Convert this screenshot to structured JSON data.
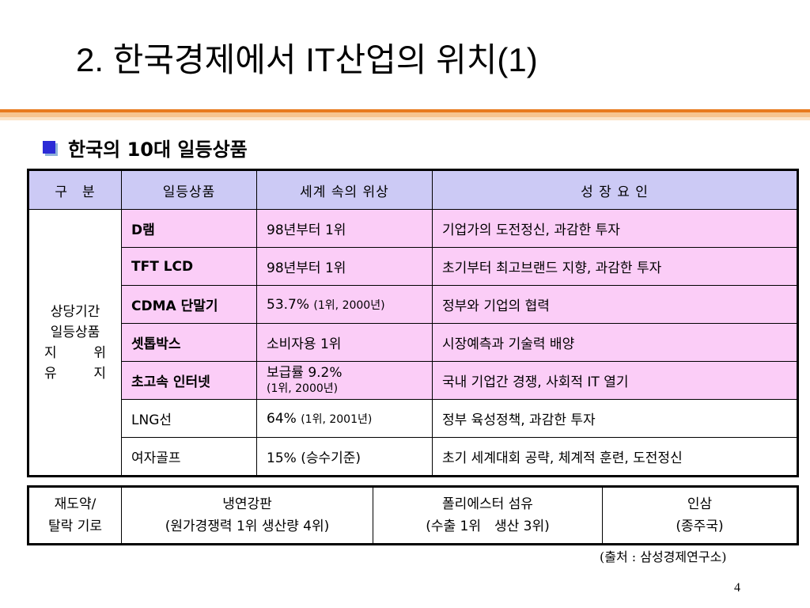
{
  "title": "2. 한국경제에서 IT산업의 위치(1)",
  "subtitle": "한국의 10대 일등상품",
  "table": {
    "headers": [
      "구　분",
      "일등상품",
      "세계 속의 위상",
      "성 장 요 인"
    ],
    "category_label": {
      "line1": "상당기간",
      "line2": "일등상품",
      "line3a": "지",
      "line3b": "위",
      "line4a": "유",
      "line4b": "지"
    },
    "rows": [
      {
        "product": "D램",
        "status": "98년부터 1위",
        "factor": "기업가의 도전정신, 과감한 투자"
      },
      {
        "product": "TFT LCD",
        "status": "98년부터 1위",
        "factor": "초기부터 최고브랜드 지향, 과감한 투자"
      },
      {
        "product": "CDMA 단말기",
        "status_main": "53.7% ",
        "status_note": "(1위, 2000년)",
        "factor": "정부와 기업의 협력"
      },
      {
        "product": "셋톱박스",
        "status": "소비자용 1위",
        "factor": "시장예측과 기술력 배양"
      },
      {
        "product": "초고속 인터넷",
        "status_main": "보급률 9.2%",
        "status_note": "(1위, 2000년)",
        "factor": "국내 기업간 경쟁, 사회적 IT 열기"
      },
      {
        "product": "LNG선",
        "status_main": "64% ",
        "status_note": "(1위, 2001년)",
        "factor": "정부 육성정책, 과감한 투자"
      },
      {
        "product": "여자골프",
        "status": "15% (승수기준)",
        "factor": "초기 세계대회 공략, 체계적 훈련, 도전정신"
      }
    ]
  },
  "table2": {
    "label_line1": "재도약/",
    "label_line2": "탈락 기로",
    "items": [
      {
        "line1": "냉연강판",
        "line2": "(원가경쟁력 1위 생산량 4위)"
      },
      {
        "line1": "폴리에스터 섬유",
        "line2": "(수출 1위　생산 3위)"
      },
      {
        "line1": "인삼",
        "line2": "(종주국)"
      }
    ]
  },
  "source": "(출처 : 삼성경제연구소)",
  "page_number": "4",
  "colors": {
    "header_bg": "#cccaf5",
    "highlight_bg": "#fbcdf7",
    "accent": "#e87a1e",
    "bullet": "#2b2bd6"
  }
}
